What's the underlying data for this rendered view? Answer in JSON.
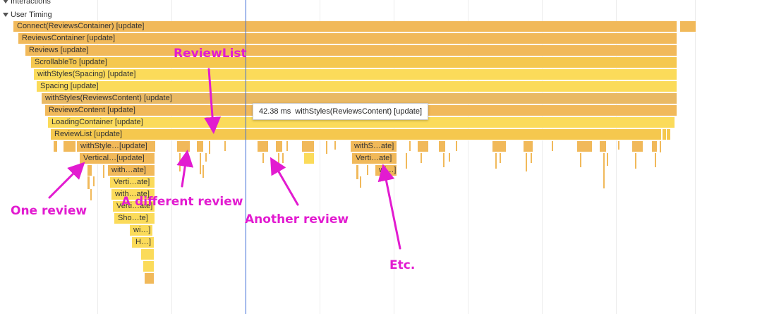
{
  "tracks": {
    "interactions": "Interactions",
    "user_timing": "User Timing"
  },
  "bars": [
    "Connect(ReviewsContainer) [update]",
    "ReviewsContainer [update]",
    "Reviews [update]",
    "ScrollableTo [update]",
    "withStyles(Spacing) [update]",
    "Spacing [update]",
    "withStyles(ReviewsContent) [update]",
    "ReviewsContent [update]",
    "LoadingContainer [update]",
    "ReviewList [update]",
    "withStyle…[update]",
    "Vertical…[update]",
    "with…ate]",
    "Verti…ate]",
    "with…ate]",
    "Verti…ate]",
    "Sho…te]",
    "wi…]",
    "H…]",
    "withS…ate]",
    "Verti…ate]",
    "wi…]"
  ],
  "tooltip": {
    "time": "42.38 ms",
    "label": "withStyles(ReviewsContent) [update]"
  },
  "annotations": {
    "review_list": "ReviewList",
    "one_review": "One review",
    "different_review": "A different review",
    "another_review": "Another review",
    "etc": "Etc."
  },
  "colors": {
    "annotation": "#e21bd0",
    "cursor": "#3c6bd6"
  }
}
